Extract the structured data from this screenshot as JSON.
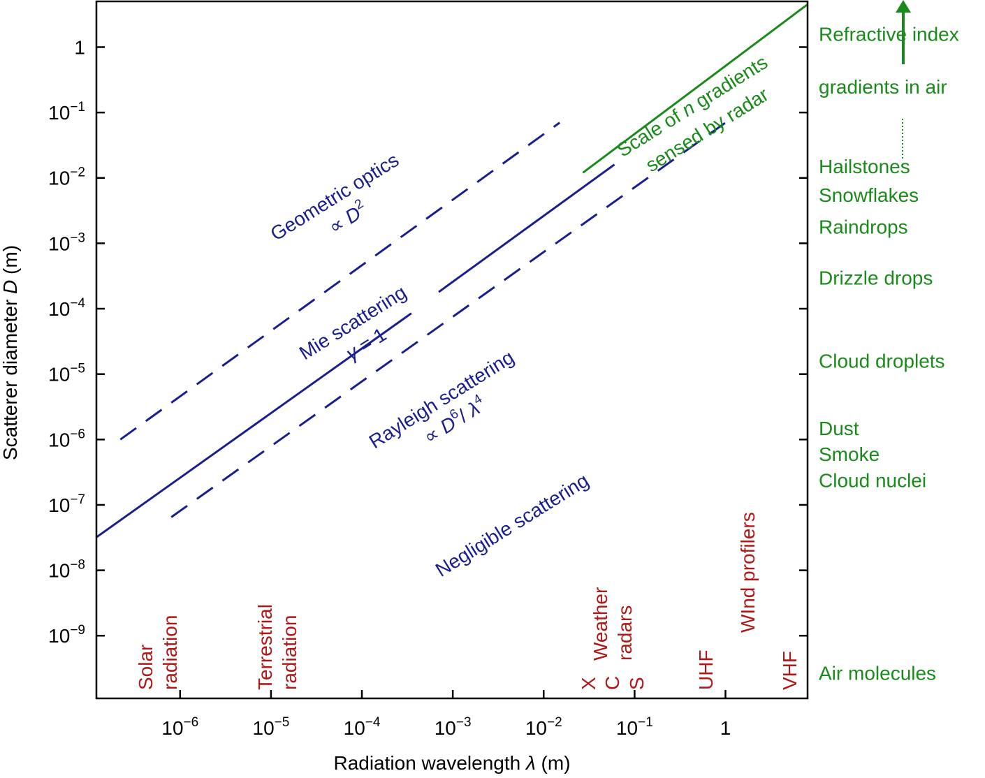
{
  "chart_data": {
    "type": "line",
    "title": "",
    "xlabel_prefix": "Radiation wavelength ",
    "xlabel_symbol": "λ",
    "xlabel_unit": " (m)",
    "ylabel_prefix": "Scatterer diameter ",
    "ylabel_symbol": "D",
    "ylabel_unit": " (m)",
    "xscale": "log",
    "yscale": "log",
    "xlim": [
      1.2e-07,
      8
    ],
    "ylim": [
      1.1e-10,
      5
    ],
    "x_ticks": [
      {
        "value": 1e-06,
        "base": "10",
        "exp": "−6"
      },
      {
        "value": 1e-05,
        "base": "10",
        "exp": "−5"
      },
      {
        "value": 0.0001,
        "base": "10",
        "exp": "−4"
      },
      {
        "value": 0.001,
        "base": "10",
        "exp": "−3"
      },
      {
        "value": 0.01,
        "base": "10",
        "exp": "−2"
      },
      {
        "value": 0.1,
        "base": "10",
        "exp": "−1"
      },
      {
        "value": 1,
        "base": "1",
        "exp": ""
      }
    ],
    "y_ticks": [
      {
        "value": 1,
        "base": "1",
        "exp": ""
      },
      {
        "value": 0.1,
        "base": "10",
        "exp": "−1"
      },
      {
        "value": 0.01,
        "base": "10",
        "exp": "−2"
      },
      {
        "value": 0.001,
        "base": "10",
        "exp": "−3"
      },
      {
        "value": 0.0001,
        "base": "10",
        "exp": "−4"
      },
      {
        "value": 1e-05,
        "base": "10",
        "exp": "−5"
      },
      {
        "value": 1e-06,
        "base": "10",
        "exp": "−6"
      },
      {
        "value": 1e-07,
        "base": "10",
        "exp": "−7"
      },
      {
        "value": 1e-08,
        "base": "10",
        "exp": "−8"
      },
      {
        "value": 1e-09,
        "base": "10",
        "exp": "−9"
      }
    ],
    "series": [
      {
        "id": "mie-boundary-line",
        "style": "solid",
        "color": "#1a1f8f",
        "segments": [
          [
            [
              1.2e-07,
              3.2e-08
            ],
            [
              0.00035,
              8.5e-05
            ]
          ],
          [
            [
              0.0007,
              0.00018
            ],
            [
              0.06,
              0.016
            ]
          ]
        ]
      },
      {
        "id": "geometric-boundary-line",
        "style": "dashed",
        "color": "#1a1f8f",
        "segments": [
          [
            [
              2.2e-07,
              1e-06
            ],
            [
              0.015,
              0.07
            ]
          ]
        ]
      },
      {
        "id": "rayleigh-boundary-line",
        "style": "dashed",
        "color": "#1a1f8f",
        "segments": [
          [
            [
              8e-07,
              6.5e-08
            ],
            [
              1.0,
              0.07
            ]
          ]
        ]
      },
      {
        "id": "n-gradient-line",
        "style": "solid",
        "color": "#1a8a1a",
        "segments": [
          [
            [
              0.027,
              0.012
            ],
            [
              8.0,
              4.5
            ]
          ]
        ]
      }
    ],
    "colors": {
      "axis": "#000000",
      "scattering": "#1a1f8f",
      "bands": "#b01818",
      "targets": "#1a8a1a"
    },
    "annotations": {
      "geometric_optics": {
        "line1": "Geometric optics",
        "line2_prefix": "∝ ",
        "line2_symbol": "D",
        "line2_sup": "2"
      },
      "mie": {
        "line1": "Mie scattering",
        "line2_symbol": "γ",
        "line2_rest": " = 1"
      },
      "rayleigh": {
        "line1": "Rayleigh scattering",
        "line2_prefix": "∝ ",
        "sym_d": "D",
        "sup_6": "6",
        "slash": "/ ",
        "sym_l": "λ",
        "sup_4": "4"
      },
      "negligible": {
        "line1": "Negligible scattering"
      },
      "n_gradients": {
        "line1_prefix": "Scale of ",
        "line1_symbol": "n",
        "line1_suffix": " gradients",
        "line2": "sensed by radar"
      }
    },
    "wavelength_bands": {
      "solar": {
        "line1": "Solar",
        "line2": "radiation"
      },
      "terrestrial": {
        "line1": "Terrestrial",
        "line2": "radiation"
      },
      "weather": {
        "line1": "Weather",
        "line2": "radars"
      },
      "x_band": "X",
      "c_band": "C",
      "s_band": "S",
      "uhf": "UHF",
      "wind_profilers": "WInd profilers",
      "vhf": "VHF"
    },
    "targets": [
      {
        "id": "refractive-1",
        "label": "Refractive index",
        "d": 1.6
      },
      {
        "id": "refractive-2",
        "label": "gradients in air",
        "d": 0.25
      },
      {
        "id": "hailstones",
        "label": "Hailstones",
        "d": 0.015
      },
      {
        "id": "snowflakes",
        "label": "Snowflakes",
        "d": 0.0055
      },
      {
        "id": "raindrops",
        "label": "Raindrops",
        "d": 0.0018
      },
      {
        "id": "drizzle",
        "label": "Drizzle drops",
        "d": 0.0003
      },
      {
        "id": "cloud-droplets",
        "label": "Cloud droplets",
        "d": 1.6e-05
      },
      {
        "id": "dust",
        "label": "Dust",
        "d": 1.5e-06
      },
      {
        "id": "smoke",
        "label": "Smoke",
        "d": 6e-07
      },
      {
        "id": "cloud-nuclei",
        "label": "Cloud nuclei",
        "d": 2.4e-07
      },
      {
        "id": "air-molecules",
        "label": "Air molecules",
        "d": 2.7e-10
      }
    ]
  }
}
